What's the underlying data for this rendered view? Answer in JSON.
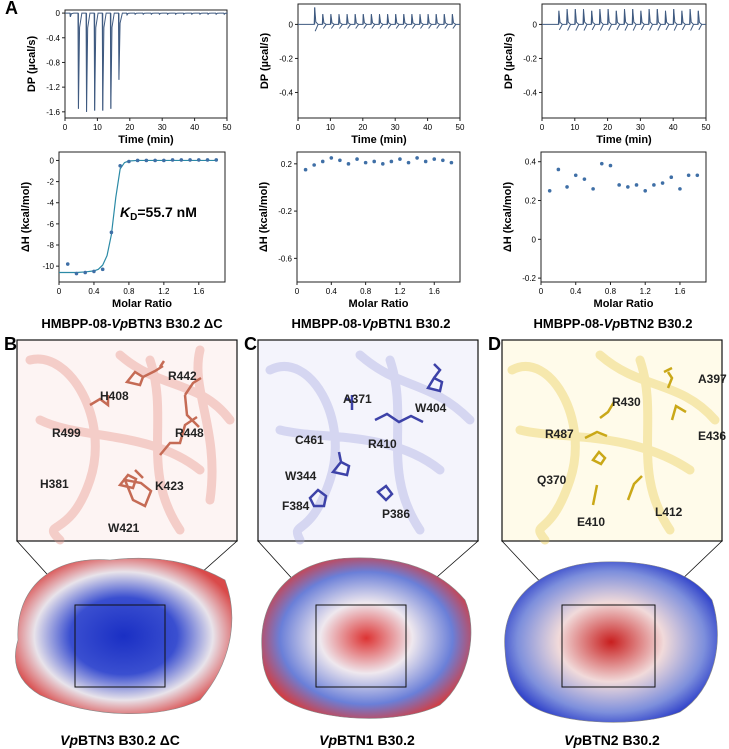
{
  "panel_letters": {
    "a": "A",
    "b": "B",
    "c": "C",
    "d": "D"
  },
  "itc": [
    {
      "id": "btn3",
      "title": "HMBPP-08-VpBTN3 B30.2 ΔC",
      "title_prefix": "HMBPP-08-",
      "title_italic": "Vp",
      "title_suffix": "BTN3 B30.2 ΔC"
    },
    {
      "id": "btn1",
      "title": "HMBPP-08-VpBTN1 B30.2",
      "title_prefix": "HMBPP-08-",
      "title_italic": "Vp",
      "title_suffix": "BTN1 B30.2"
    },
    {
      "id": "btn2",
      "title": "HMBPP-08-VpBTN2 B30.2",
      "title_prefix": "HMBPP-08-",
      "title_italic": "Vp",
      "title_suffix": "BTN2 B30.2"
    }
  ],
  "kd_label": {
    "k": "K",
    "sub": "D",
    "value": "=55.7 nM"
  },
  "chart_data": [
    {
      "type": "line",
      "panel": "btn3-thermogram",
      "xlabel": "Time (min)",
      "ylabel": "DP (µcal/s)",
      "xlim": [
        0,
        50
      ],
      "ylim": [
        -1.7,
        0.05
      ],
      "xticks": [
        "0",
        "10",
        "20",
        "30",
        "40",
        "50"
      ],
      "yticks": [
        "0",
        "-0.4",
        "-0.8",
        "-1.2",
        "-1.6"
      ],
      "ytick_values": [
        0,
        -0.4,
        -0.8,
        -1.2,
        -1.6
      ],
      "injection_times": [
        1.5,
        4,
        6.5,
        9,
        11.5,
        14,
        16.5,
        19,
        21.5,
        24,
        26.5,
        29,
        31.5,
        34,
        36.5,
        39,
        41.5,
        44,
        46.5,
        49
      ],
      "injection_peaks": [
        -0.06,
        -1.55,
        -1.6,
        -1.58,
        -1.58,
        -1.55,
        -1.08,
        -0.03,
        -0.02,
        -0.02,
        -0.02,
        -0.02,
        -0.02,
        -0.02,
        -0.02,
        -0.02,
        -0.02,
        -0.02,
        -0.02,
        -0.02
      ]
    },
    {
      "type": "line",
      "panel": "btn1-thermogram",
      "xlabel": "Time (min)",
      "ylabel": "DP (µcal/s)",
      "xlim": [
        0,
        50
      ],
      "ylim": [
        -0.55,
        0.12
      ],
      "xticks": [
        "0",
        "10",
        "20",
        "30",
        "40",
        "50"
      ],
      "yticks": [
        "0",
        "-0.2",
        "-0.4"
      ],
      "ytick_values": [
        0,
        -0.2,
        -0.4
      ],
      "injection_times": [
        5,
        7.5,
        10,
        12.5,
        15,
        17.5,
        20,
        22.5,
        25,
        27.5,
        30,
        32.5,
        35,
        37.5,
        40,
        42.5,
        45,
        47.5
      ],
      "injection_peaks": [
        0.1,
        0.06,
        0.06,
        0.06,
        0.06,
        0.06,
        0.06,
        0.06,
        0.06,
        0.06,
        0.06,
        0.06,
        0.06,
        0.06,
        0.06,
        0.06,
        0.06,
        0.06
      ]
    },
    {
      "type": "line",
      "panel": "btn2-thermogram",
      "xlabel": "Time (min)",
      "ylabel": "DP (µcal/s)",
      "xlim": [
        0,
        50
      ],
      "ylim": [
        -0.55,
        0.12
      ],
      "xticks": [
        "0",
        "10",
        "20",
        "30",
        "40",
        "50"
      ],
      "yticks": [
        "0",
        "-0.2",
        "-0.4"
      ],
      "ytick_values": [
        0,
        -0.2,
        -0.4
      ],
      "injection_times": [
        5,
        7.5,
        10,
        12.5,
        15,
        17.5,
        20,
        22.5,
        25,
        27.5,
        30,
        32.5,
        35,
        37.5,
        40,
        42.5,
        45,
        47.5
      ],
      "injection_peaks": [
        0.08,
        0.09,
        0.09,
        0.09,
        0.08,
        0.09,
        0.09,
        0.08,
        0.09,
        0.09,
        0.08,
        0.09,
        0.09,
        0.08,
        0.09,
        0.08,
        0.09,
        0.08
      ]
    },
    {
      "type": "scatter",
      "panel": "btn3-isotherm",
      "xlabel": "Molar Ratio",
      "ylabel": "ΔH (kcal/mol)",
      "xlim": [
        0,
        1.9
      ],
      "ylim": [
        -11.5,
        0.8
      ],
      "xticks": [
        "0",
        "0.4",
        "0.8",
        "1.2",
        "1.6"
      ],
      "xtick_values": [
        0,
        0.4,
        0.8,
        1.2,
        1.6
      ],
      "yticks": [
        "0",
        "-2",
        "-4",
        "-6",
        "-8",
        "-10"
      ],
      "ytick_values": [
        0,
        -2,
        -4,
        -6,
        -8,
        -10
      ],
      "x": [
        0.1,
        0.2,
        0.3,
        0.4,
        0.5,
        0.6,
        0.7,
        0.8,
        0.9,
        1.0,
        1.1,
        1.2,
        1.3,
        1.4,
        1.5,
        1.6,
        1.7,
        1.8
      ],
      "y": [
        -9.8,
        -10.7,
        -10.6,
        -10.5,
        -10.3,
        -6.8,
        -0.5,
        -0.1,
        0.0,
        0.0,
        0.0,
        0.0,
        0.05,
        0.05,
        0.05,
        0.05,
        0.05,
        0.05
      ],
      "fit_x": [
        0,
        0.1,
        0.2,
        0.3,
        0.4,
        0.45,
        0.5,
        0.55,
        0.6,
        0.65,
        0.7,
        0.75,
        0.8,
        0.9,
        1.0,
        1.2,
        1.4,
        1.6,
        1.8
      ],
      "fit_y": [
        -10.6,
        -10.6,
        -10.6,
        -10.55,
        -10.45,
        -10.3,
        -9.9,
        -9.0,
        -7.0,
        -3.5,
        -0.8,
        -0.2,
        -0.05,
        0,
        0,
        0,
        0,
        0,
        0
      ]
    },
    {
      "type": "scatter",
      "panel": "btn1-isotherm",
      "xlabel": "Molar Ratio",
      "ylabel": "ΔH (kcal/mol)",
      "xlim": [
        0,
        1.9
      ],
      "ylim": [
        -0.8,
        0.3
      ],
      "xticks": [
        "0",
        "0.4",
        "0.8",
        "1.2",
        "1.6"
      ],
      "xtick_values": [
        0,
        0.4,
        0.8,
        1.2,
        1.6
      ],
      "yticks": [
        "0.2",
        "-0.2",
        "-0.6"
      ],
      "ytick_values": [
        0.2,
        -0.2,
        -0.6
      ],
      "x": [
        0.1,
        0.2,
        0.3,
        0.4,
        0.5,
        0.6,
        0.7,
        0.8,
        0.9,
        1.0,
        1.1,
        1.2,
        1.3,
        1.4,
        1.5,
        1.6,
        1.7,
        1.8
      ],
      "y": [
        0.15,
        0.19,
        0.22,
        0.25,
        0.23,
        0.2,
        0.24,
        0.21,
        0.22,
        0.2,
        0.22,
        0.24,
        0.21,
        0.25,
        0.22,
        0.24,
        0.23,
        0.21
      ]
    },
    {
      "type": "scatter",
      "panel": "btn2-isotherm",
      "xlabel": "Molar Ratio",
      "ylabel": "ΔH (kcal/mol)",
      "xlim": [
        0,
        1.9
      ],
      "ylim": [
        -0.22,
        0.45
      ],
      "xticks": [
        "0",
        "0.4",
        "0.8",
        "1.2",
        "1.6"
      ],
      "xtick_values": [
        0,
        0.4,
        0.8,
        1.2,
        1.6
      ],
      "yticks": [
        "0.4",
        "0.2",
        "0",
        "-0.2"
      ],
      "ytick_values": [
        0.4,
        0.2,
        0,
        -0.2
      ],
      "x": [
        0.1,
        0.2,
        0.3,
        0.4,
        0.5,
        0.6,
        0.7,
        0.8,
        0.9,
        1.0,
        1.1,
        1.2,
        1.3,
        1.4,
        1.5,
        1.6,
        1.7,
        1.8
      ],
      "y": [
        0.25,
        0.36,
        0.27,
        0.33,
        0.31,
        0.26,
        0.39,
        0.38,
        0.28,
        0.27,
        0.28,
        0.25,
        0.28,
        0.29,
        0.32,
        0.26,
        0.33,
        0.33
      ]
    }
  ],
  "structures": [
    {
      "id": "b",
      "protein_prefix": "Vp",
      "protein_suffix": "BTN3 B30.2 ΔC",
      "residues": [
        "H408",
        "R442",
        "R499",
        "R448",
        "H381",
        "K423",
        "W421"
      ],
      "residue_color": "#d4836c",
      "cartoon_color": "#f3c9c3"
    },
    {
      "id": "c",
      "protein_prefix": "Vp",
      "protein_suffix": "BTN1 B30.2",
      "residues": [
        "A371",
        "W404",
        "C461",
        "R410",
        "W344",
        "F384",
        "P386"
      ],
      "residue_color": "#4a4fb0",
      "cartoon_color": "#c9c9ea"
    },
    {
      "id": "d",
      "protein_prefix": "Vp",
      "protein_suffix": "BTN2 B30.2",
      "residues": [
        "R430",
        "A397",
        "R487",
        "E436",
        "Q370",
        "L412",
        "E410"
      ],
      "residue_color": "#d8c12c",
      "cartoon_color": "#f7ebb3"
    }
  ],
  "colors": {
    "trace": "#3f5a80",
    "fit": "#2b8aa6",
    "points": "#3f6fa6"
  }
}
